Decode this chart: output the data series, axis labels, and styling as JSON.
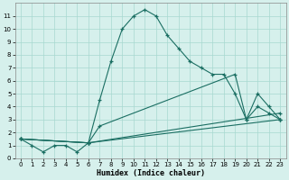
{
  "xlabel": "Humidex (Indice chaleur)",
  "bg_color": "#d6f0ec",
  "grid_color": "#a8d8d0",
  "line_color": "#1a6e62",
  "xlim": [
    -0.5,
    23.5
  ],
  "ylim": [
    0,
    12
  ],
  "xticks": [
    0,
    1,
    2,
    3,
    4,
    5,
    6,
    7,
    8,
    9,
    10,
    11,
    12,
    13,
    14,
    15,
    16,
    17,
    18,
    19,
    20,
    21,
    22,
    23
  ],
  "yticks": [
    0,
    1,
    2,
    3,
    4,
    5,
    6,
    7,
    8,
    9,
    10,
    11
  ],
  "lines": [
    {
      "x": [
        0,
        1,
        2,
        3,
        4,
        5,
        6,
        7,
        8,
        9,
        10,
        11,
        12,
        13,
        14,
        15,
        16,
        17,
        18,
        19,
        20,
        21,
        22,
        23
      ],
      "y": [
        1.5,
        1.0,
        0.5,
        1.0,
        1.0,
        0.5,
        1.2,
        4.5,
        7.5,
        10.0,
        11.0,
        11.5,
        11.0,
        9.5,
        8.5,
        7.5,
        7.0,
        6.5,
        6.5,
        5.0,
        3.0,
        4.0,
        3.5,
        3.0
      ]
    },
    {
      "x": [
        0,
        6,
        7,
        19,
        20,
        21,
        22,
        23
      ],
      "y": [
        1.5,
        1.2,
        2.5,
        6.5,
        3.0,
        5.0,
        4.0,
        3.0
      ]
    },
    {
      "x": [
        0,
        6,
        23
      ],
      "y": [
        1.5,
        1.2,
        3.5
      ]
    },
    {
      "x": [
        0,
        6,
        23
      ],
      "y": [
        1.5,
        1.2,
        3.0
      ]
    }
  ]
}
